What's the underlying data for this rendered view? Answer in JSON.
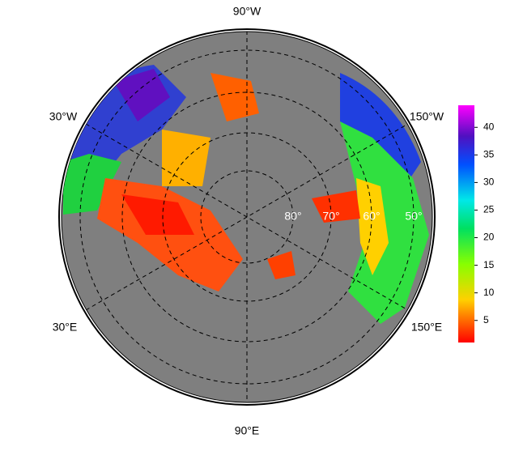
{
  "map": {
    "longitude_labels": [
      "90°W",
      "30°W",
      "150°W",
      "30°E",
      "150°E",
      "90°E"
    ],
    "latitude_labels": [
      "80°",
      "70°",
      "60°",
      "50°"
    ]
  },
  "colorbar": {
    "lim": [
      1,
      44
    ],
    "ticks": [
      5,
      10,
      15,
      20,
      25,
      30,
      35,
      40
    ]
  }
}
